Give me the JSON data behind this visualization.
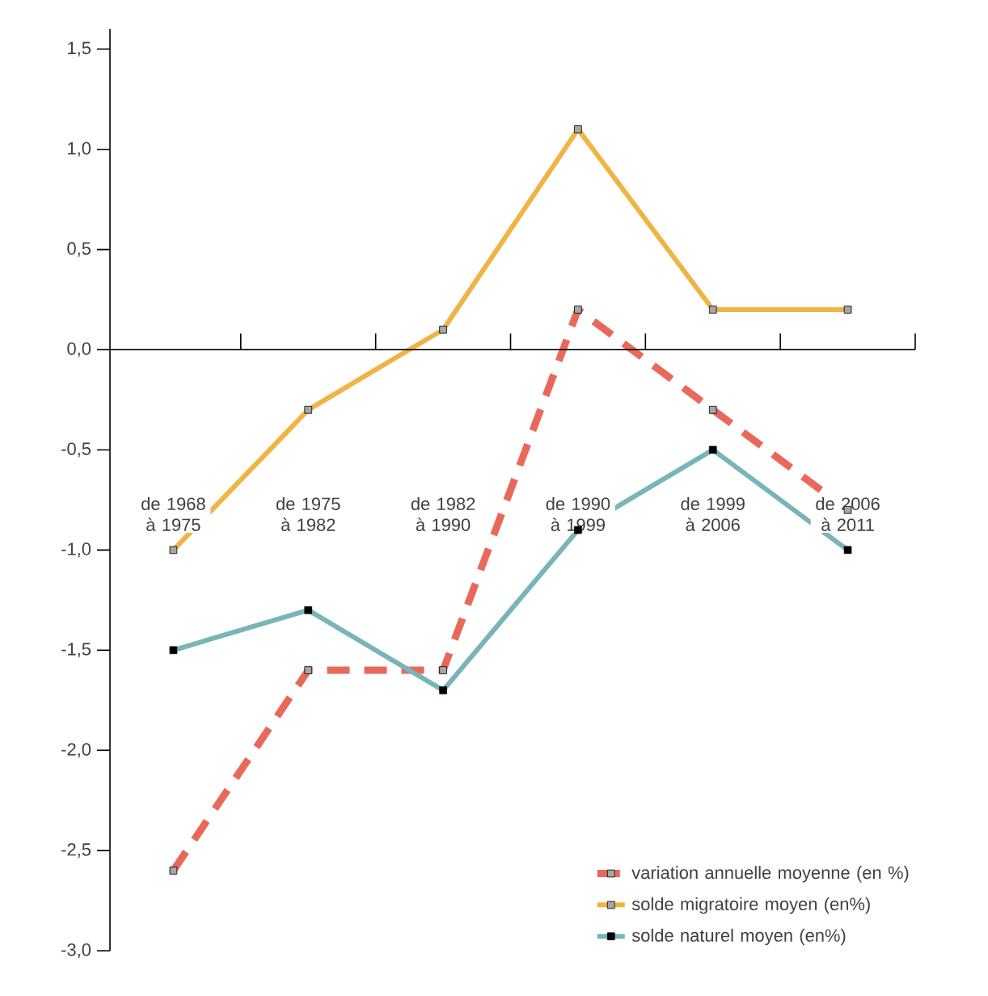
{
  "chart_data": {
    "type": "line",
    "categories": [
      "de 1968 à 1975",
      "de 1975 à 1982",
      "de 1982 à 1990",
      "de 1990 à 1999",
      "de 1999 à 2006",
      "de 2006 à 2011"
    ],
    "series": [
      {
        "name": "variation annuelle moyenne (en %)",
        "color": "#e8695a",
        "line_style": "dashed",
        "values": [
          -2.6,
          -1.6,
          -1.6,
          0.2,
          -0.3,
          -0.8
        ]
      },
      {
        "name": "solde migratoire moyen (en%)",
        "color": "#f0b445",
        "line_style": "solid",
        "values": [
          -1.0,
          -0.3,
          0.1,
          1.1,
          0.2,
          0.2
        ]
      },
      {
        "name": "solde naturel moyen (en%)",
        "color": "#79b4b8",
        "line_style": "solid",
        "values": [
          -1.5,
          -1.3,
          -1.7,
          -0.9,
          -0.5,
          -1.0
        ]
      }
    ],
    "ylim": [
      -3.0,
      1.6
    ],
    "yticks": [
      {
        "value": -3.0,
        "label": "-3,0"
      },
      {
        "value": -2.5,
        "label": "-2,5"
      },
      {
        "value": -2.0,
        "label": "-2,0"
      },
      {
        "value": -1.5,
        "label": "-1,5"
      },
      {
        "value": -1.0,
        "label": "-1,0"
      },
      {
        "value": -0.5,
        "label": "-0,5"
      },
      {
        "value": 0.0,
        "label": "0,0"
      },
      {
        "value": 0.5,
        "label": "0,5"
      },
      {
        "value": 1.0,
        "label": "1,0"
      },
      {
        "value": 1.5,
        "label": "1,5"
      }
    ],
    "marker": "square",
    "legend": "bottom right"
  }
}
